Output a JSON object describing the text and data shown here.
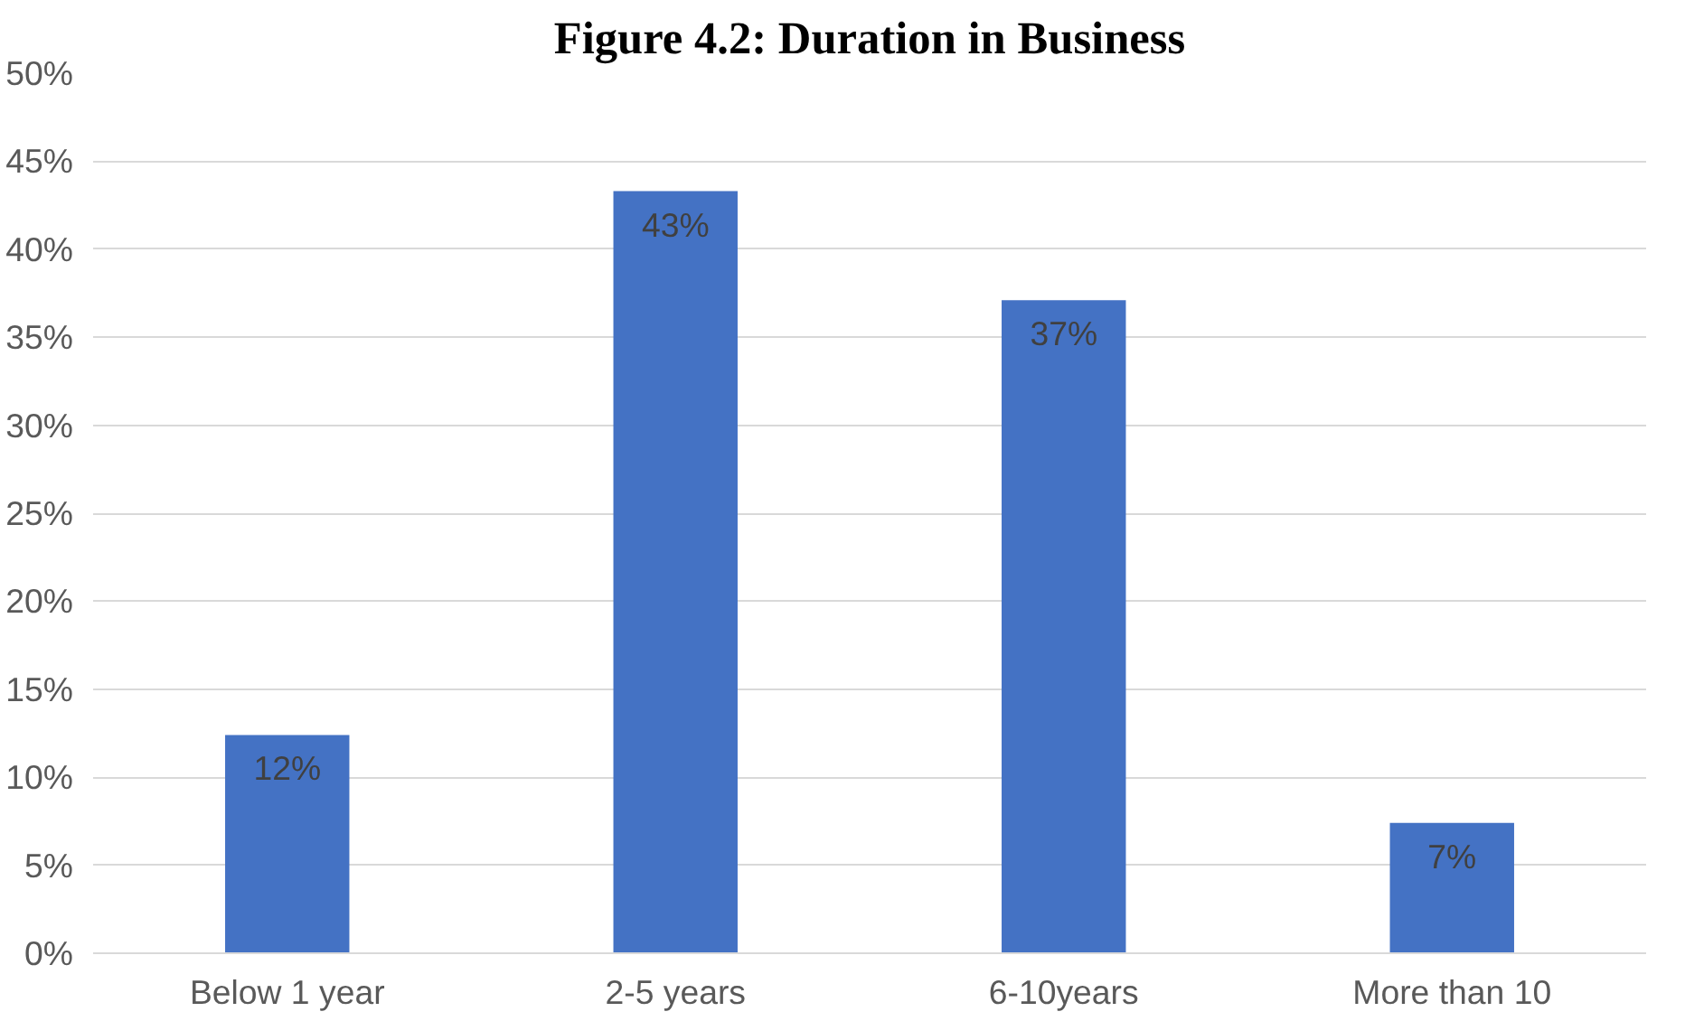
{
  "chart_data": {
    "type": "bar",
    "title": "Figure 4.2: Duration in Business",
    "categories": [
      "Below 1 year",
      "2-5 years",
      "6-10years",
      "More than 10"
    ],
    "values": [
      12.4,
      43.3,
      37.1,
      7.4
    ],
    "value_labels": [
      "12%",
      "43%",
      "37%",
      "7%"
    ],
    "color": "#4472c4",
    "ylim": [
      0,
      50
    ],
    "yticks": [
      {
        "value": 0,
        "label": "0%"
      },
      {
        "value": 5,
        "label": "5%"
      },
      {
        "value": 10,
        "label": "10%"
      },
      {
        "value": 15,
        "label": "15%"
      },
      {
        "value": 20,
        "label": "20%"
      },
      {
        "value": 25,
        "label": "25%"
      },
      {
        "value": 30,
        "label": "30%"
      },
      {
        "value": 35,
        "label": "35%"
      },
      {
        "value": 40,
        "label": "40%"
      },
      {
        "value": 45,
        "label": "45%"
      },
      {
        "value": 50,
        "label": "50%"
      }
    ],
    "grid": "y"
  }
}
